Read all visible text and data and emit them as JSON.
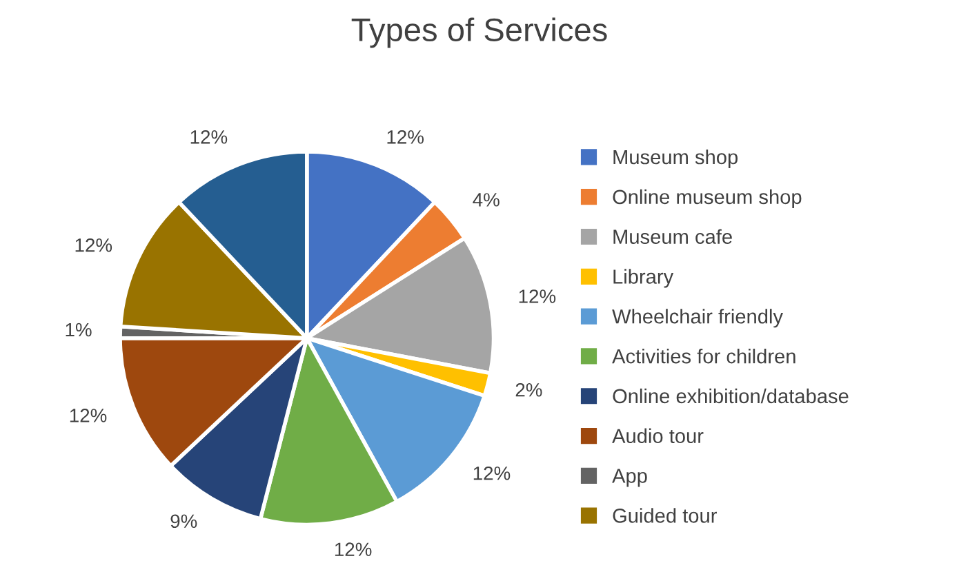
{
  "chart_data": {
    "type": "pie",
    "title": "Types of Services",
    "categories": [
      "Museum shop",
      "Online museum shop",
      "Museum cafe",
      "Library",
      "Wheelchair friendly",
      "Activities for children",
      "Online exhibition/database",
      "Audio tour",
      "App",
      "Guided tour",
      null
    ],
    "values": [
      12,
      4,
      12,
      2,
      12,
      12,
      9,
      12,
      1,
      12,
      12
    ],
    "value_labels": [
      "12%",
      "4%",
      "12%",
      "2%",
      "12%",
      "12%",
      "9%",
      "12%",
      "1%",
      "12%",
      "12%"
    ],
    "colors": [
      "#4472c4",
      "#ed7d31",
      "#a5a5a5",
      "#ffc000",
      "#5b9bd5",
      "#70ad47",
      "#264478",
      "#9e480e",
      "#636363",
      "#997300",
      "#255e91"
    ],
    "legend": "right"
  }
}
